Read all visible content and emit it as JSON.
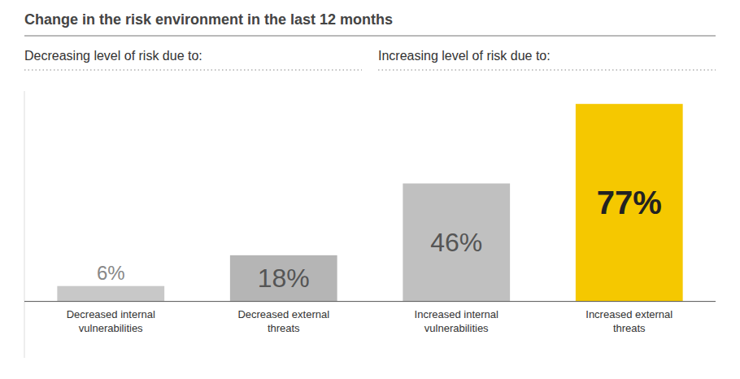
{
  "chart_data": {
    "type": "bar",
    "title": "Change in the risk environment in the last 12 months",
    "annotations": [
      "Decreasing level of risk due to:",
      "Increasing level of risk due to:"
    ],
    "categories": [
      "Decreased internal\nvulnerabilities",
      "Decreased external\nthreats",
      "Increased internal\nvulnerabilities",
      "Increased external\nthreats"
    ],
    "values": [
      6,
      18,
      46,
      77
    ],
    "value_labels": [
      "6%",
      "18%",
      "46%",
      "77%"
    ],
    "colors": [
      "#c8c8c8",
      "#b5b5b5",
      "#c0c0c0",
      "#f5c800"
    ],
    "ylim": [
      -22,
      82
    ],
    "data_labels": true,
    "tick_labels": "x"
  }
}
